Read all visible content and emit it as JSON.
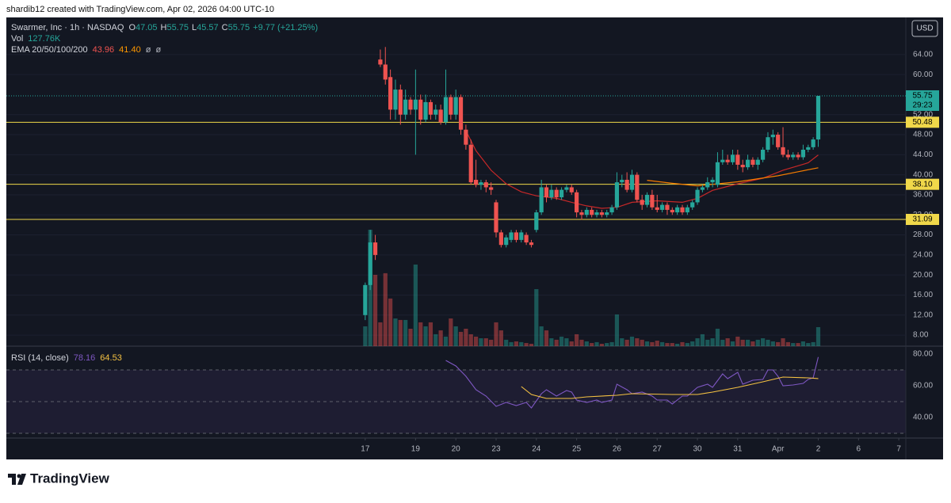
{
  "header": {
    "attribution": "shardib12 created with TradingView.com, Apr 02, 2026 04:00 UTC-10",
    "brand": "TradingView"
  },
  "chart_data": {
    "type": "candlestick",
    "title": "Swarmer, Inc · 1h · NASDAQ",
    "ohlc_legend": [
      {
        "label": "O",
        "value": 47.05
      },
      {
        "label": "H",
        "value": 55.75
      },
      {
        "label": "L",
        "value": 45.57
      },
      {
        "label": "C",
        "value": 55.75
      }
    ],
    "change": "+9.77 (+21.25%)",
    "volume_label": "Vol",
    "volume_value": "127.76K",
    "ema_label": "EMA 20/50/100/200",
    "ema_values": [
      43.96,
      {
        "value": 41.4,
        "label": "41.40"
      },
      "ø",
      "ø"
    ],
    "currency": "USD",
    "up_color": "#26a69a",
    "down_color": "#ef5350",
    "open": [
      12,
      18,
      26.5,
      63,
      62,
      59.5,
      53,
      57,
      52,
      55,
      53,
      55,
      51,
      54.5,
      52,
      53,
      50.5,
      55.5,
      52,
      55.5,
      49,
      46,
      39,
      38,
      38.5,
      37.5,
      34.5,
      28.5,
      26,
      27,
      28.5,
      27,
      28,
      26.5,
      29,
      32.5,
      37.5,
      35.5,
      37,
      35.5,
      37,
      37.5,
      36.5,
      32.5,
      32,
      33,
      32,
      32.5,
      32,
      32.5,
      33.5,
      38.5,
      39,
      37,
      40,
      35,
      34,
      36,
      33.5,
      33,
      34,
      33,
      32.5,
      33.5,
      32.5,
      33.5,
      34.5,
      37,
      37.5,
      38.5,
      38,
      42.5,
      43,
      42.5,
      44,
      42,
      41.5,
      43,
      42,
      43,
      45,
      47.5,
      48,
      45.5,
      44,
      43.5,
      44,
      43.5,
      45,
      45.5,
      47.05
    ],
    "high": [
      18.5,
      29,
      28,
      65,
      65.5,
      61,
      59,
      58,
      57,
      55.5,
      61,
      56,
      56,
      55,
      54,
      54,
      61,
      56,
      57,
      56,
      50,
      47,
      43,
      39,
      39,
      38.5,
      35,
      29,
      28,
      29,
      29,
      29,
      28.5,
      27,
      33,
      39,
      38,
      38,
      37.5,
      37.5,
      38,
      38,
      37,
      33,
      33.5,
      33.5,
      33,
      33,
      33,
      34,
      40.5,
      40,
      40.5,
      41,
      40.5,
      36,
      36.5,
      37,
      36,
      34.5,
      34.5,
      33.5,
      34,
      34,
      34,
      35,
      37.5,
      38,
      39.5,
      39.5,
      44.5,
      45,
      44,
      45,
      45,
      43,
      44,
      43.5,
      43.5,
      45.5,
      48.5,
      49,
      48.5,
      49.5,
      45,
      44.5,
      44.5,
      46,
      46,
      47.5,
      55.75
    ],
    "low": [
      11,
      17,
      23,
      61.5,
      58,
      51,
      51,
      50,
      51,
      52,
      44,
      50,
      50.5,
      51,
      51,
      50,
      50,
      51,
      51,
      48,
      45,
      38,
      37.5,
      37,
      36.5,
      36,
      27.5,
      25.5,
      25.5,
      26.5,
      26.5,
      26.5,
      26,
      25.5,
      28.5,
      32,
      34.5,
      35,
      35,
      35,
      36.5,
      36,
      31.5,
      31,
      31.5,
      31.5,
      31.5,
      31.5,
      31.5,
      32,
      33,
      37.5,
      36.5,
      36.5,
      34.5,
      33,
      33.5,
      33,
      32.5,
      32.5,
      32,
      32,
      32,
      32,
      32,
      33,
      34,
      36.5,
      37,
      37.5,
      37.5,
      42,
      42,
      42,
      41,
      40.5,
      41,
      41.5,
      41,
      42.5,
      44.5,
      46,
      45,
      43.5,
      43,
      43,
      43,
      43,
      44.5,
      45,
      45.57
    ],
    "close": [
      18,
      26.5,
      24,
      62,
      59,
      53,
      57,
      52,
      55,
      53,
      55,
      51,
      54.5,
      52,
      53,
      50.5,
      55.5,
      52,
      55.5,
      49,
      46,
      38.5,
      38,
      38.5,
      37.5,
      37,
      28.5,
      26,
      27.5,
      28.5,
      27,
      28.5,
      26.5,
      26,
      32.5,
      37.5,
      35.5,
      37,
      35.5,
      37,
      37.5,
      36.5,
      32.5,
      32,
      33,
      32,
      32.5,
      32,
      32.5,
      33.5,
      38.5,
      39,
      37,
      40,
      35,
      34,
      36,
      33.5,
      33,
      34,
      33,
      32.5,
      33.5,
      32.5,
      33.5,
      34.5,
      37,
      37.5,
      38.5,
      39,
      42.5,
      43,
      42.5,
      44,
      42,
      41.5,
      43,
      42,
      43,
      45,
      47.5,
      48,
      45.5,
      44,
      43.5,
      44,
      43.5,
      45,
      45.5,
      47.05,
      55.75
    ],
    "volume": [
      133,
      782,
      479,
      160,
      490,
      320,
      186,
      176,
      176,
      117,
      548,
      160,
      133,
      160,
      80,
      106,
      64,
      186,
      133,
      96,
      117,
      80,
      64,
      53,
      53,
      43,
      160,
      106,
      43,
      27,
      32,
      27,
      21,
      16,
      383,
      133,
      106,
      53,
      43,
      64,
      53,
      32,
      80,
      43,
      32,
      21,
      27,
      16,
      21,
      27,
      213,
      53,
      43,
      64,
      53,
      43,
      32,
      27,
      37,
      27,
      21,
      21,
      16,
      27,
      21,
      32,
      53,
      80,
      43,
      53,
      117,
      43,
      53,
      32,
      64,
      43,
      43,
      32,
      43,
      53,
      43,
      32,
      27,
      53,
      27,
      21,
      21,
      32,
      21,
      27,
      127.76
    ],
    "ema": [
      {
        "color": "#c62828",
        "x": [
          20,
          22,
          25,
          28,
          31,
          34,
          38,
          41,
          44,
          47,
          50,
          53,
          58,
          63,
          66,
          69,
          74,
          79,
          83,
          88,
          90
        ],
        "values": [
          48.8,
          44.8,
          40.9,
          38.2,
          36.6,
          35.8,
          35.3,
          34.5,
          33.8,
          33.3,
          33.5,
          34.5,
          34.8,
          34.5,
          35.3,
          36.9,
          38.2,
          39.3,
          40.9,
          42.4,
          43.96
        ]
      },
      {
        "color": "#f57c00",
        "x": [
          56,
          61,
          66,
          74,
          82,
          86,
          90
        ],
        "values": [
          38.9,
          38.3,
          37.8,
          38.6,
          39.8,
          40.6,
          41.4
        ]
      }
    ],
    "ema_value_colors": [
      "#ef5350",
      "#ff9800",
      "#b2b5be",
      "#b2b5be"
    ],
    "levels": [
      50.48,
      {
        "value": 38.1,
        "label": "38.10"
      },
      31.09
    ],
    "level_color": "#f0d84a",
    "last_price": 55.75,
    "countdown": "29:23",
    "ylim": [
      5.8,
      71.4
    ],
    "yticks": [
      {
        "value": 8,
        "label": "8.00"
      },
      {
        "value": 12,
        "label": "12.00"
      },
      {
        "value": 16,
        "label": "16.00"
      },
      {
        "value": 20,
        "label": "20.00"
      },
      {
        "value": 24,
        "label": "24.00"
      },
      {
        "value": 28,
        "label": "28.00"
      },
      {
        "value": 32,
        "label": "32.00"
      },
      {
        "value": 36,
        "label": "36.00"
      },
      {
        "value": 40,
        "label": "40.00"
      },
      {
        "value": 44,
        "label": "44.00"
      },
      {
        "value": 48,
        "label": "48.00"
      },
      {
        "value": 52,
        "label": "52.00"
      },
      {
        "value": 60,
        "label": "60.00"
      },
      {
        "value": 64,
        "label": "64.00"
      }
    ],
    "xlim": [
      -71.3,
      107.4
    ],
    "xticks": [
      {
        "value": 0,
        "label": "17"
      },
      {
        "value": 10,
        "label": "19"
      },
      {
        "value": 18,
        "label": "20"
      },
      {
        "value": 26,
        "label": "23"
      },
      {
        "value": 34,
        "label": "24"
      },
      {
        "value": 42,
        "label": "25"
      },
      {
        "value": 50,
        "label": "26"
      },
      {
        "value": 58,
        "label": "27"
      },
      {
        "value": 66,
        "label": "30"
      },
      {
        "value": 74,
        "label": "31"
      },
      {
        "value": 82,
        "label": "Apr"
      },
      {
        "value": 90,
        "label": "2"
      },
      {
        "value": 98,
        "label": "6"
      },
      {
        "value": 106,
        "label": "7"
      }
    ],
    "rsi": {
      "label": "RSI (14, close)",
      "legend_values": [
        78.16,
        64.53
      ],
      "ylim": [
        27,
        85
      ],
      "yticks": [
        {
          "value": 40,
          "label": "40.00"
        },
        {
          "value": 60,
          "label": "60.00"
        },
        {
          "value": 80,
          "label": "80.00"
        }
      ],
      "bands": [
        70,
        50,
        30
      ],
      "series": [
        {
          "color": "#7e57c2",
          "x": [
            16,
            18,
            20,
            22,
            24,
            26,
            28,
            30,
            32,
            33,
            35,
            36,
            38,
            40,
            41,
            42,
            44,
            46,
            47,
            49,
            50,
            52,
            53,
            55,
            57,
            58,
            60,
            61,
            63,
            64,
            66,
            68,
            69,
            71,
            72,
            74,
            75,
            77,
            79,
            80,
            81,
            82,
            83,
            85,
            87,
            88,
            89,
            90
          ],
          "values": [
            76,
            72.5,
            66,
            57.5,
            53.5,
            47,
            49.5,
            47.5,
            49.5,
            46,
            55,
            57.5,
            53.5,
            57,
            56,
            51,
            49.5,
            51,
            49.5,
            51,
            61,
            57.5,
            55,
            56,
            53.5,
            51,
            51,
            48.5,
            53.5,
            53.5,
            59,
            61,
            59,
            67.5,
            64.5,
            68.5,
            61,
            63.5,
            64,
            70,
            70,
            66,
            60,
            60.5,
            61.5,
            64,
            65,
            78.16
          ]
        },
        {
          "color": "#f5c242",
          "x": [
            31,
            33,
            36,
            41,
            44,
            50,
            53,
            61,
            66,
            69,
            74,
            79,
            83,
            88,
            90
          ],
          "values": [
            59.5,
            54.5,
            52,
            52,
            53,
            54,
            55,
            54.5,
            54.5,
            56,
            59,
            62.5,
            65.5,
            65,
            64.53
          ]
        }
      ]
    }
  }
}
